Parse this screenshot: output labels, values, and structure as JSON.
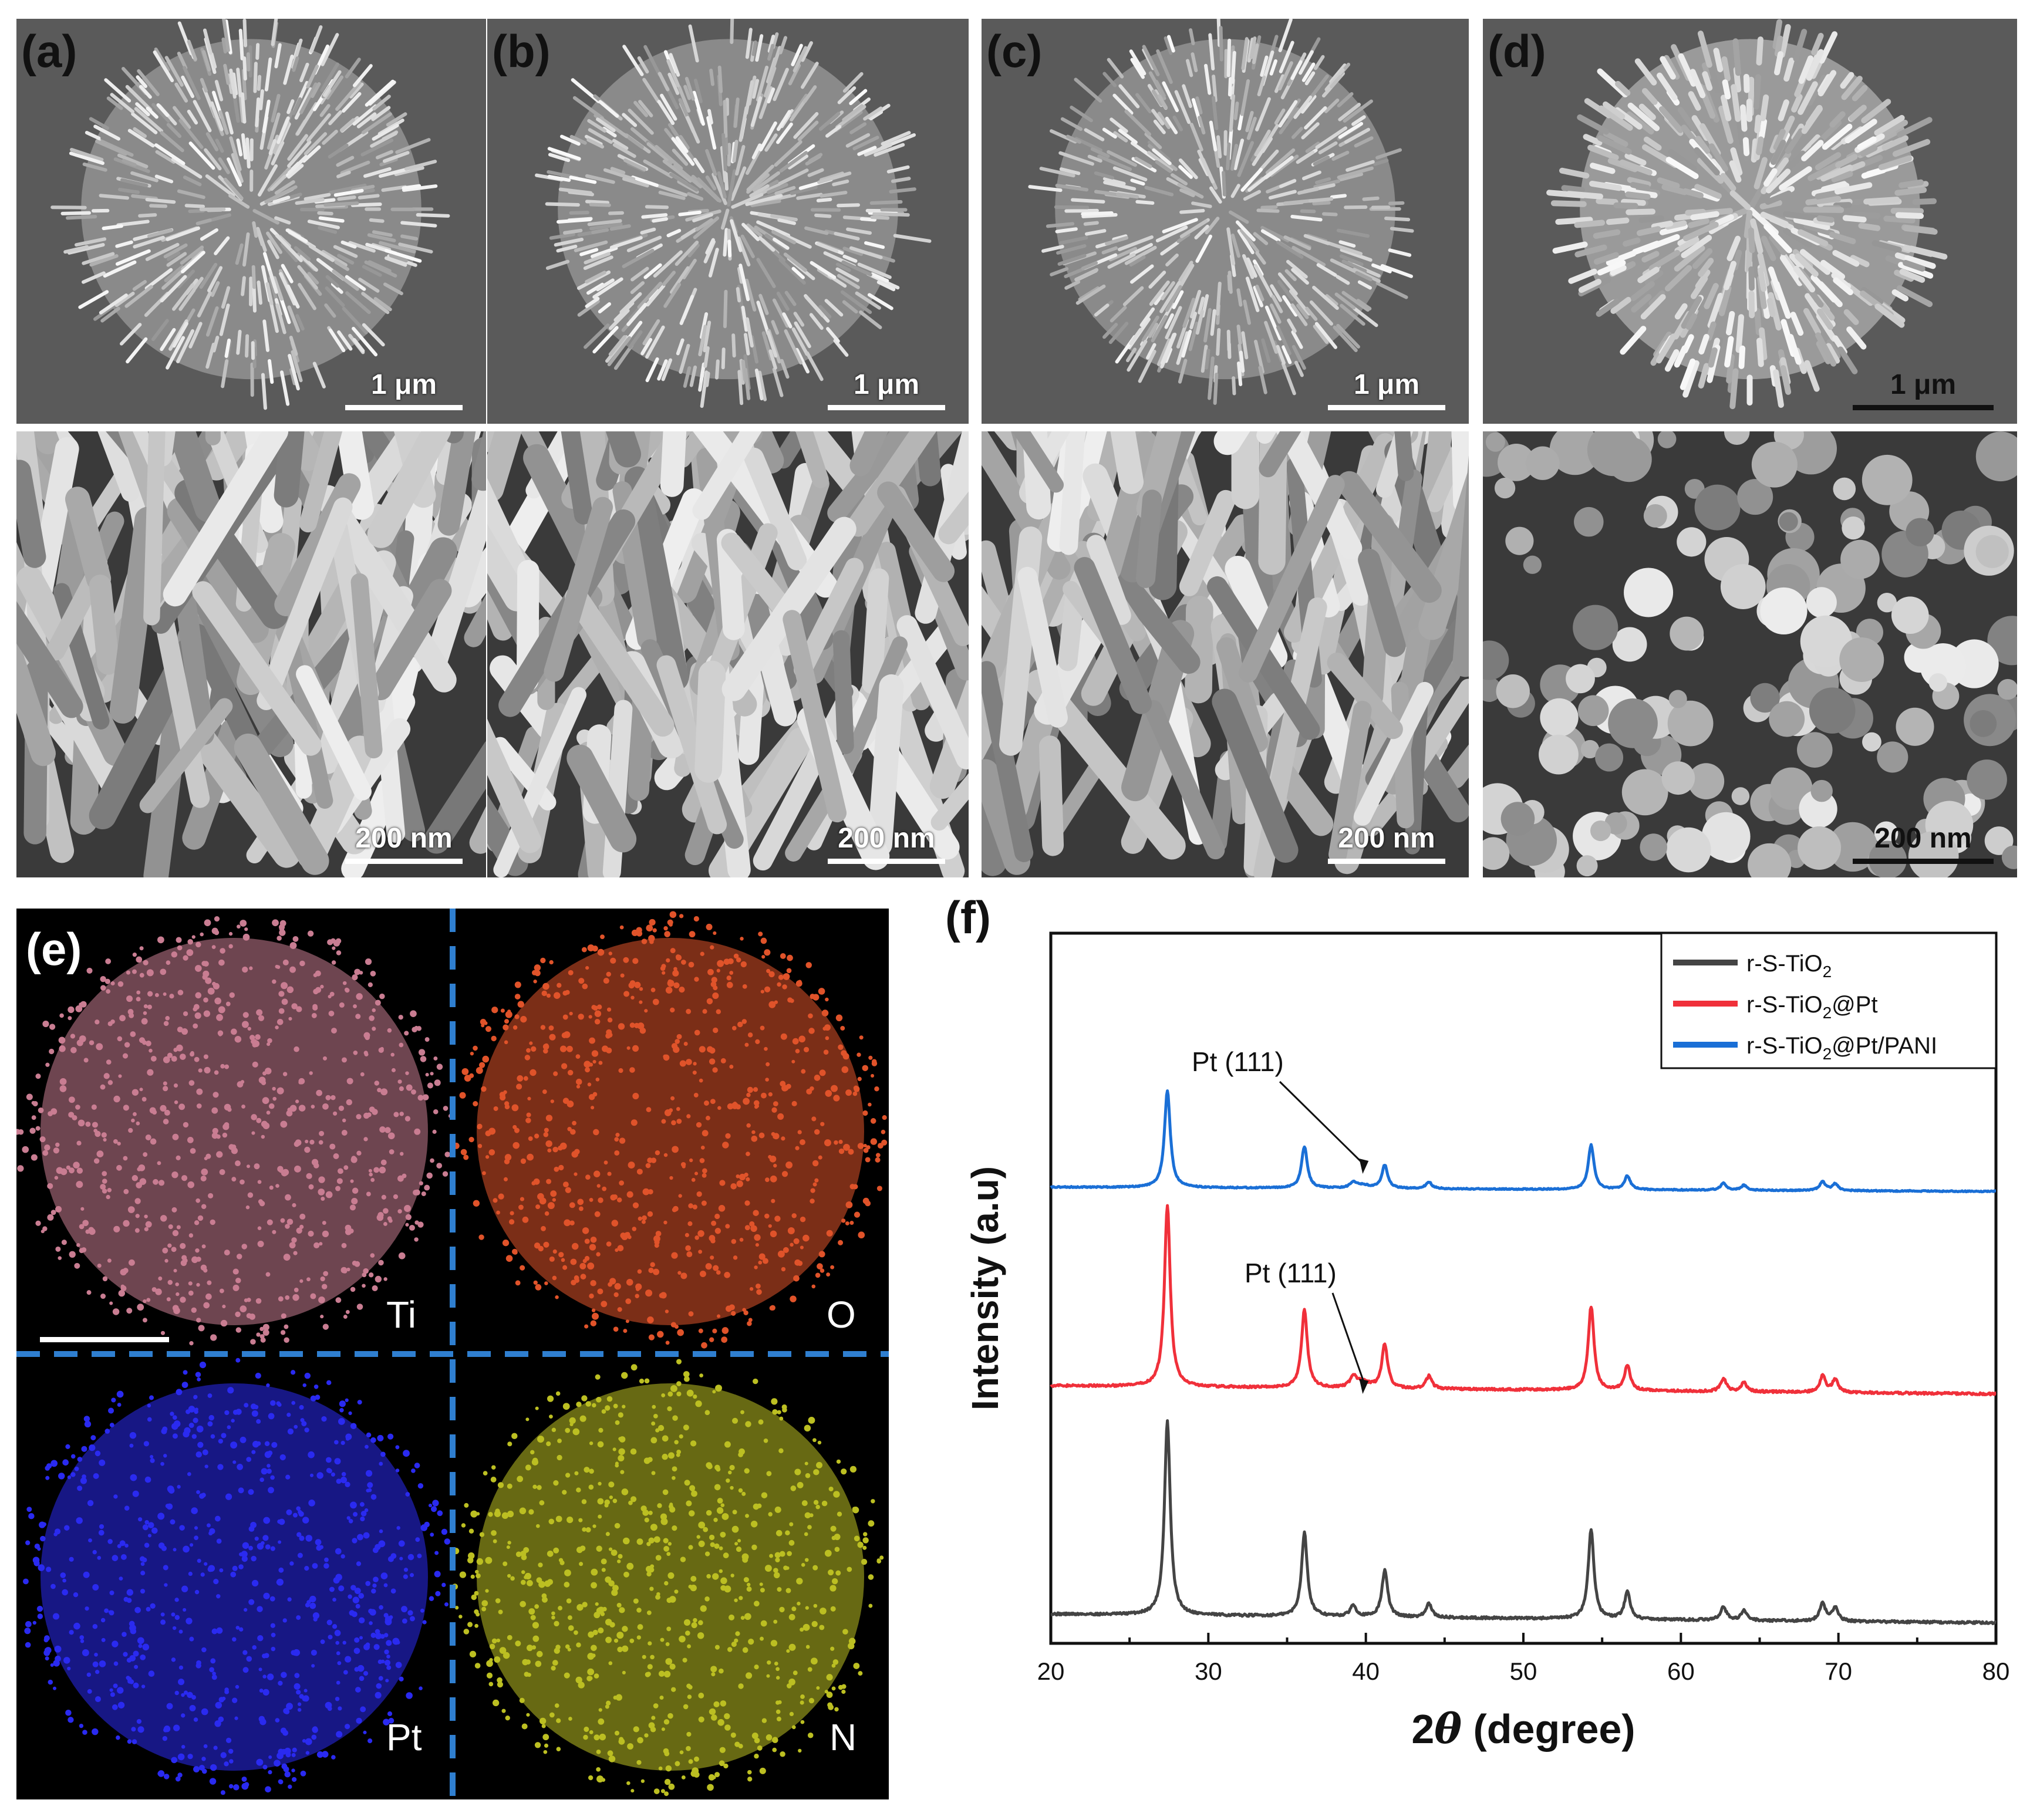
{
  "sem": {
    "panels": [
      {
        "label": "(a)",
        "top_scale": "1 μm",
        "bottom_scale": "200 nm"
      },
      {
        "label": "(b)",
        "top_scale": "1 μm",
        "bottom_scale": "200 nm"
      },
      {
        "label": "(c)",
        "top_scale": "1 μm",
        "bottom_scale": "200 nm"
      },
      {
        "label": "(d)",
        "top_scale": "1 μm",
        "bottom_scale": "200 nm"
      }
    ]
  },
  "eds": {
    "label": "(e)",
    "maps": [
      {
        "element": "Ti",
        "color": "#c97d92"
      },
      {
        "element": "O",
        "color": "#e0532a"
      },
      {
        "element": "Pt",
        "color": "#2a2af0"
      },
      {
        "element": "N",
        "color": "#bcbf22"
      }
    ],
    "divider_color": "#2f7fd0"
  },
  "chart_data": {
    "type": "line",
    "label": "(f)",
    "title": "",
    "xlabel_prefix": "2",
    "xlabel_symbol": "θ",
    "xlabel_suffix": " (degree)",
    "ylabel": "Intensity (a.u)",
    "xlim": [
      20,
      80
    ],
    "xticks": [
      "20",
      "30",
      "40",
      "50",
      "60",
      "70",
      "80"
    ],
    "y_ticks_shown": false,
    "legend": "top-right",
    "series": [
      {
        "name": "r-S-TiO2",
        "legend_parts": [
          "r-S-TiO",
          "2",
          ""
        ],
        "color": "#444444",
        "offset": 0,
        "pt_peak": false
      },
      {
        "name": "r-S-TiO2@Pt",
        "legend_parts": [
          "r-S-TiO",
          "2",
          "@Pt"
        ],
        "color": "#f0303a",
        "offset": 1,
        "pt_peak": true
      },
      {
        "name": "r-S-TiO2@Pt/PANI",
        "legend_parts": [
          "r-S-TiO",
          "2",
          "@Pt/PANI"
        ],
        "color": "#1a6fd6",
        "offset": 2,
        "pt_peak": true
      }
    ],
    "peaks": [
      {
        "x": 27.4,
        "h": 1.0
      },
      {
        "x": 36.1,
        "h": 0.43
      },
      {
        "x": 39.2,
        "h": 0.06
      },
      {
        "x": 41.2,
        "h": 0.24
      },
      {
        "x": 44.0,
        "h": 0.07
      },
      {
        "x": 54.3,
        "h": 0.46
      },
      {
        "x": 56.6,
        "h": 0.14
      },
      {
        "x": 62.7,
        "h": 0.07
      },
      {
        "x": 64.0,
        "h": 0.05
      },
      {
        "x": 69.0,
        "h": 0.09
      },
      {
        "x": 69.8,
        "h": 0.07
      }
    ],
    "annotations": [
      {
        "text": "Pt (111)",
        "x": 39.8,
        "series": "r-S-TiO2@Pt/PANI"
      },
      {
        "text": "Pt (111)",
        "x": 39.8,
        "series": "r-S-TiO2@Pt"
      }
    ]
  }
}
